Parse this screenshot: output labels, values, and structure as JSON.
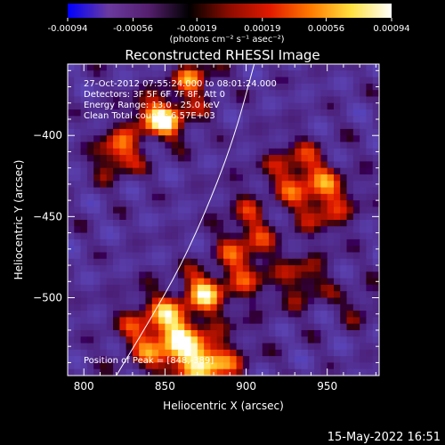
{
  "chart_data": {
    "type": "heatmap",
    "title": "Reconstructed RHESSI Image",
    "xlabel": "Heliocentric X (arcsec)",
    "ylabel": "Heliocentric Y (arcsec)",
    "xlim": [
      790,
      982
    ],
    "ylim": [
      -548,
      -356
    ],
    "x_ticks": [
      800,
      850,
      900,
      950
    ],
    "y_ticks": [
      -400,
      -450,
      -500
    ],
    "colorbar": {
      "range": [
        -0.00094,
        0.00094
      ],
      "tick_values": [
        -0.00094,
        -0.00056,
        -0.00019,
        0.00019,
        0.00056,
        0.00094
      ],
      "tick_labels": [
        "-0.00094",
        "-0.00056",
        "-0.00019",
        "0.00019",
        "0.00056",
        "0.00094"
      ],
      "units_text": "(photons cm⁻² s⁻¹ asec⁻²)",
      "stops": [
        "#0000ff",
        "#6a3aa0",
        "#551f6e",
        "#000000",
        "#8e0c00",
        "#e11a00",
        "#ff7a00",
        "#ffe040",
        "#ffffff"
      ]
    },
    "annotations": [
      "27-Oct-2012 07:55:24.000 to 08:01:24.000",
      "Detectors: 3F 5F 6F 7F 8F, Att 0",
      "Energy Range: 13.0 - 25.0 keV",
      "Clean    Total counts: 6.57E+03"
    ],
    "peak_label": "Position of Peak = [848,-389]",
    "grid_nx": 48,
    "grid_ny": 48,
    "limb_curve_points": [
      [
        820,
        -548
      ],
      [
        840,
        -515
      ],
      [
        860,
        -480
      ],
      [
        878,
        -440
      ],
      [
        893,
        -400
      ],
      [
        905,
        -356
      ]
    ],
    "sources": [
      {
        "x": 848,
        "y": -389,
        "sx": 14,
        "sy": 10,
        "amp": 1.0
      },
      {
        "x": 820,
        "y": -412,
        "sx": 10,
        "sy": 10,
        "amp": 0.8
      },
      {
        "x": 868,
        "y": -365,
        "sx": 10,
        "sy": 8,
        "amp": 0.7
      },
      {
        "x": 850,
        "y": -520,
        "sx": 18,
        "sy": 16,
        "amp": 0.95
      },
      {
        "x": 875,
        "y": -495,
        "sx": 10,
        "sy": 10,
        "amp": 0.7
      },
      {
        "x": 875,
        "y": -540,
        "sx": 16,
        "sy": 10,
        "amp": 0.9
      },
      {
        "x": 900,
        "y": -470,
        "sx": 12,
        "sy": 24,
        "amp": 0.65
      },
      {
        "x": 948,
        "y": -440,
        "sx": 14,
        "sy": 14,
        "amp": 0.7
      },
      {
        "x": 935,
        "y": -490,
        "sx": 12,
        "sy": 12,
        "amp": 0.55
      },
      {
        "x": 930,
        "y": -420,
        "sx": 12,
        "sy": 12,
        "amp": 0.6
      },
      {
        "x": 970,
        "y": -505,
        "sx": 8,
        "sy": 8,
        "amp": 0.4
      }
    ]
  },
  "footer_date": "15-May-2022 16:51"
}
